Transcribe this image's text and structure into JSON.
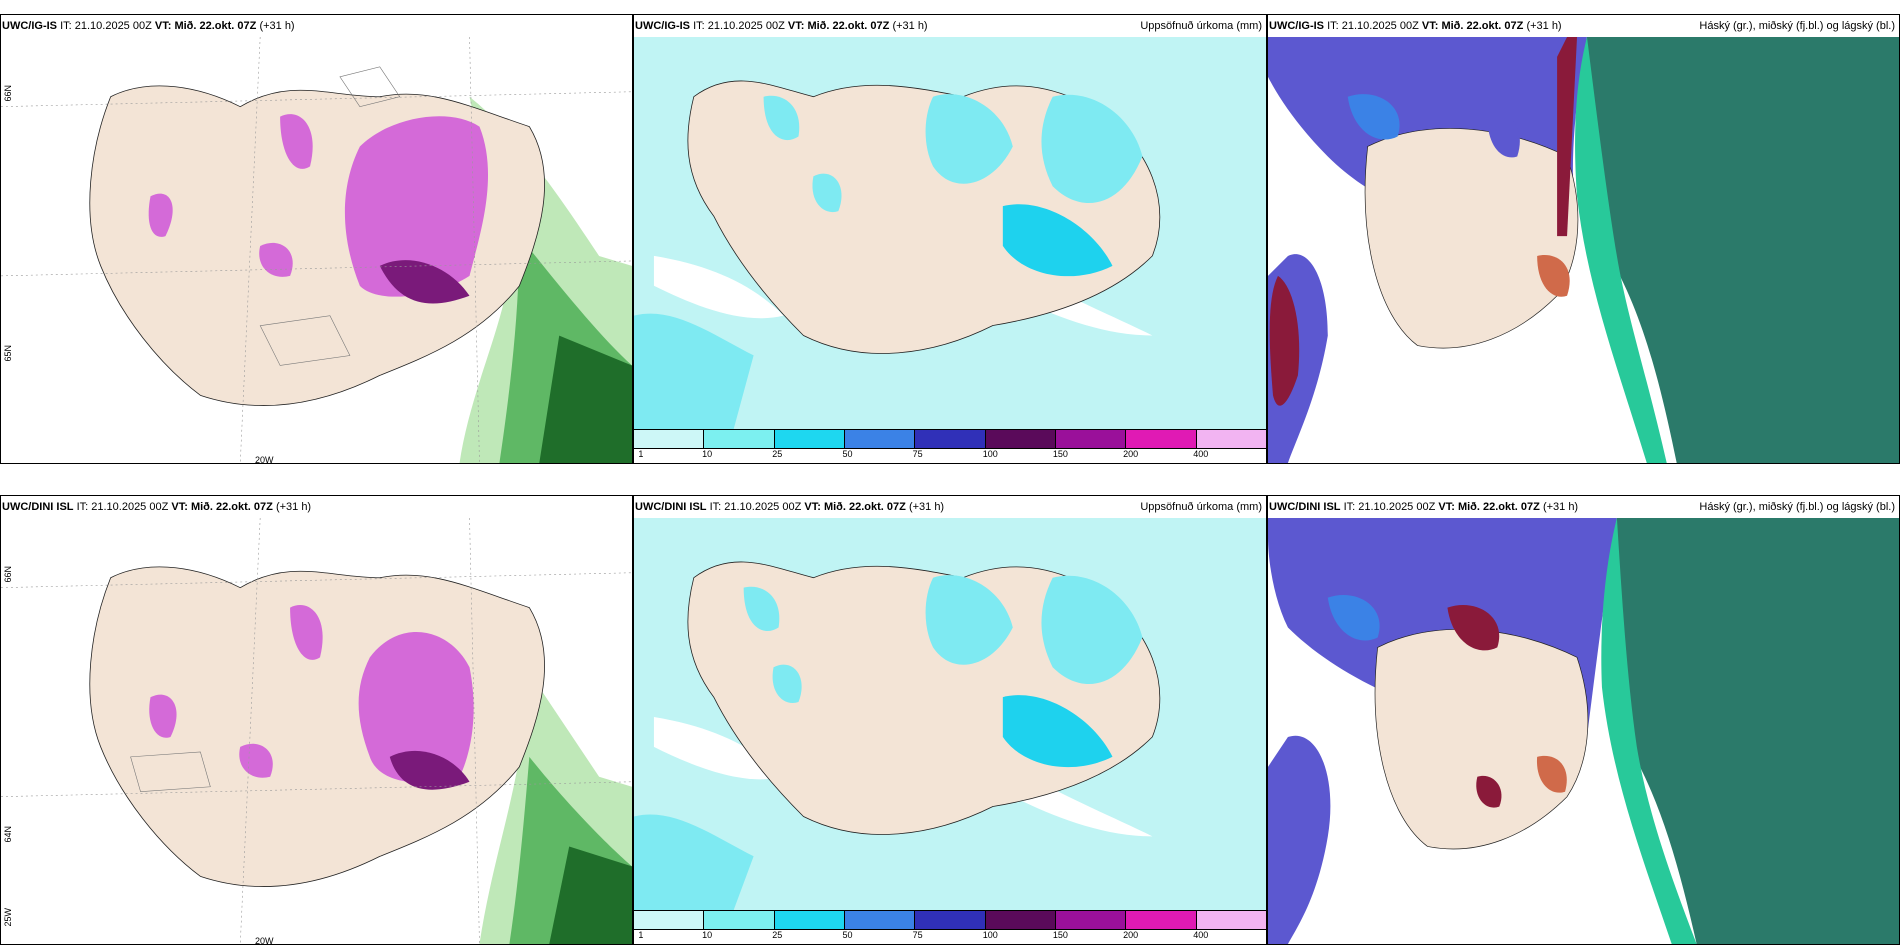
{
  "rows": [
    {
      "model": "UWC/IG-IS",
      "it_label": "IT:",
      "it_value": "21.10.2025 00Z",
      "vt_label": "VT:",
      "vt_value": "Mið. 22.okt. 07Z",
      "lead": "(+31 h)",
      "lat_label_a": "66N",
      "lat_label_b": "65N",
      "lon_label": "20W"
    },
    {
      "model": "UWC/DINI ISL",
      "it_label": "IT:",
      "it_value": "21.10.2025 00Z",
      "vt_label": "VT:",
      "vt_value": "Mið. 22.okt. 07Z",
      "lead": "(+31 h)",
      "lat_label_a": "66N",
      "lat_label_b": "64N",
      "lon_label": "20W",
      "corner_lon": "25W"
    }
  ],
  "precip_title": "Uppsöfnuð úrkoma (mm)",
  "cloud_title": "Háský (gr.), miðský (fj.bl.) og lágský (bl.)",
  "colorbar": {
    "labels": [
      "1",
      "10",
      "25",
      "50",
      "75",
      "100",
      "150",
      "200",
      "400"
    ],
    "colors": [
      "#cdf7f7",
      "#7cf0f0",
      "#1ed7f0",
      "#3b82e6",
      "#3030b8",
      "#5a0a5a",
      "#9a109a",
      "#e01ab4",
      "#f2b4f2"
    ]
  },
  "colors": {
    "land": "#f3e4d6",
    "sea_precip": "#c0f4f4",
    "precip_light": "#7eeaf2",
    "precip_mid": "#1ed2ee",
    "purple": "#d46ad8",
    "purple_dark": "#7a1a7a",
    "green_light": "#bfe8b8",
    "green_dark": "#1f6e2a",
    "cloud_blue": "#5c58d0",
    "cloud_teal": "#2b7a6a",
    "cloud_red": "#8a1a3a"
  }
}
